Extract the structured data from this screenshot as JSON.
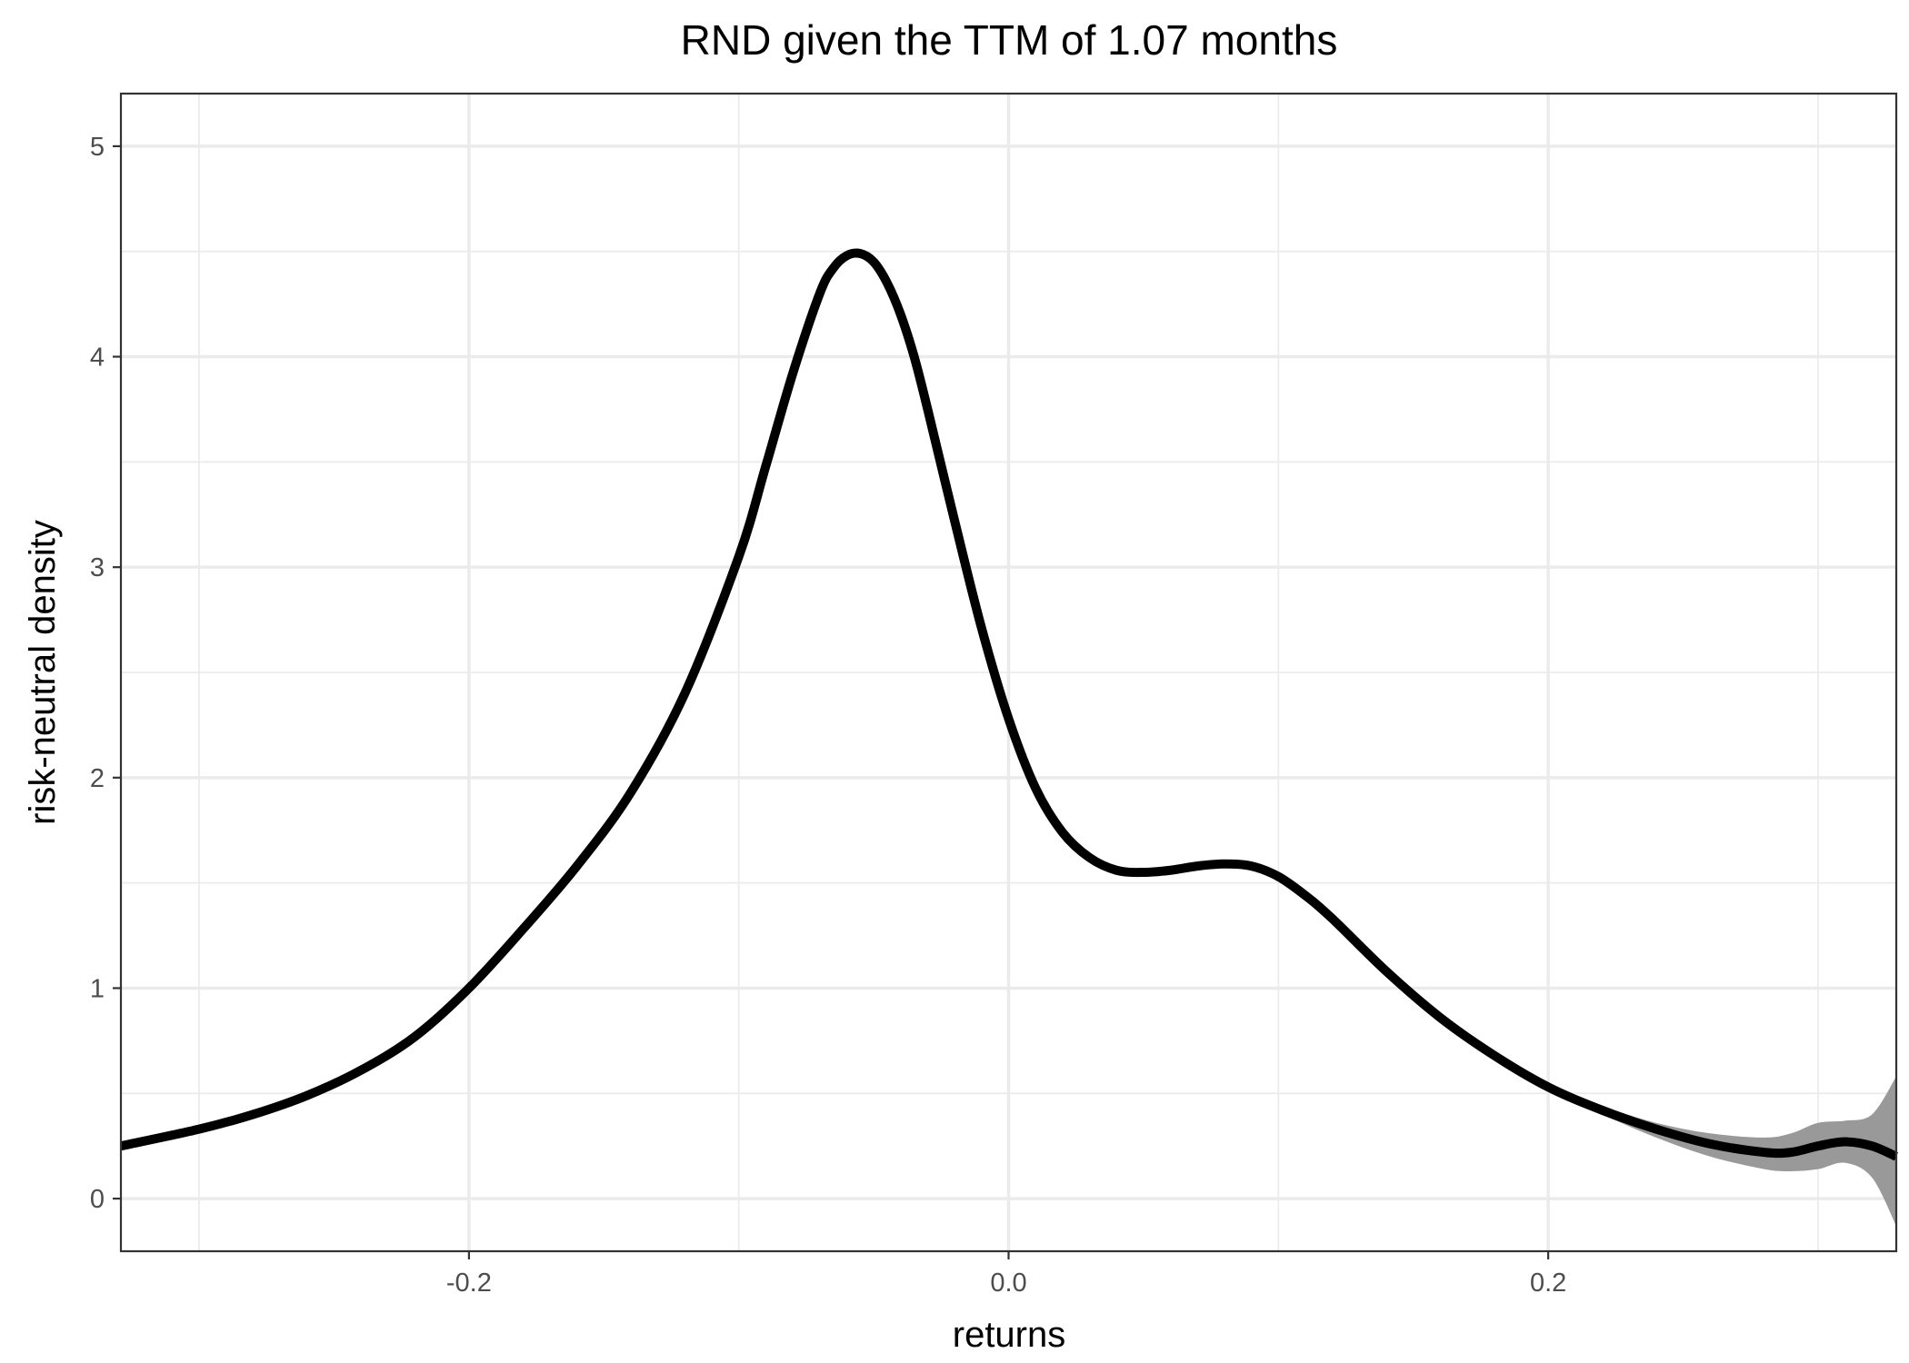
{
  "chart_data": {
    "type": "line",
    "title": "RND given the TTM of 1.07 months",
    "xlabel": "returns",
    "ylabel": "risk-neutral density",
    "xlim": [
      -0.329,
      0.329
    ],
    "ylim": [
      -0.25,
      5.25
    ],
    "x_ticks": [
      -0.2,
      0.0,
      0.2
    ],
    "x_tick_labels": [
      "-0.2",
      "0.0",
      "0.2"
    ],
    "y_ticks": [
      0,
      1,
      2,
      3,
      4,
      5
    ],
    "y_tick_labels": [
      "0",
      "1",
      "2",
      "3",
      "4",
      "5"
    ],
    "grid": true,
    "legend": "none",
    "colors": {
      "line": "#000000",
      "band": "#999999",
      "grid": "#ebebeb",
      "border": "#333333"
    },
    "series": [
      {
        "x": [
          -0.329,
          -0.3,
          -0.28,
          -0.26,
          -0.24,
          -0.22,
          -0.2,
          -0.18,
          -0.16,
          -0.14,
          -0.12,
          -0.1,
          -0.09,
          -0.08,
          -0.07,
          -0.065,
          -0.06,
          -0.055,
          -0.05,
          -0.045,
          -0.04,
          -0.035,
          -0.03,
          -0.02,
          -0.01,
          0.0,
          0.01,
          0.02,
          0.03,
          0.04,
          0.05,
          0.06,
          0.07,
          0.08,
          0.09,
          0.1,
          0.11,
          0.12,
          0.14,
          0.16,
          0.18,
          0.2,
          0.22,
          0.24,
          0.26,
          0.28,
          0.29,
          0.3,
          0.31,
          0.32,
          0.329
        ],
        "y": [
          0.25,
          0.33,
          0.4,
          0.49,
          0.61,
          0.77,
          1.0,
          1.28,
          1.58,
          1.93,
          2.4,
          3.05,
          3.48,
          3.92,
          4.3,
          4.42,
          4.48,
          4.49,
          4.45,
          4.35,
          4.2,
          4.0,
          3.75,
          3.22,
          2.71,
          2.28,
          1.95,
          1.74,
          1.62,
          1.56,
          1.55,
          1.56,
          1.58,
          1.59,
          1.58,
          1.53,
          1.44,
          1.33,
          1.08,
          0.86,
          0.68,
          0.53,
          0.42,
          0.33,
          0.26,
          0.22,
          0.22,
          0.25,
          0.27,
          0.25,
          0.2
        ],
        "lower": [
          0.25,
          0.33,
          0.4,
          0.49,
          0.61,
          0.77,
          1.0,
          1.28,
          1.58,
          1.93,
          2.4,
          3.05,
          3.48,
          3.92,
          4.3,
          4.42,
          4.48,
          4.49,
          4.45,
          4.35,
          4.2,
          4.0,
          3.75,
          3.22,
          2.71,
          2.28,
          1.95,
          1.74,
          1.62,
          1.56,
          1.55,
          1.56,
          1.58,
          1.59,
          1.58,
          1.53,
          1.44,
          1.33,
          1.08,
          0.86,
          0.68,
          0.52,
          0.4,
          0.29,
          0.2,
          0.14,
          0.13,
          0.14,
          0.17,
          0.1,
          -0.13
        ],
        "upper": [
          0.25,
          0.33,
          0.4,
          0.49,
          0.61,
          0.77,
          1.0,
          1.28,
          1.58,
          1.93,
          2.4,
          3.05,
          3.48,
          3.92,
          4.3,
          4.42,
          4.48,
          4.49,
          4.45,
          4.35,
          4.2,
          4.0,
          3.75,
          3.22,
          2.71,
          2.28,
          1.95,
          1.74,
          1.62,
          1.56,
          1.55,
          1.56,
          1.58,
          1.59,
          1.58,
          1.53,
          1.44,
          1.33,
          1.08,
          0.86,
          0.68,
          0.54,
          0.44,
          0.36,
          0.31,
          0.29,
          0.31,
          0.36,
          0.37,
          0.4,
          0.58
        ]
      }
    ]
  }
}
